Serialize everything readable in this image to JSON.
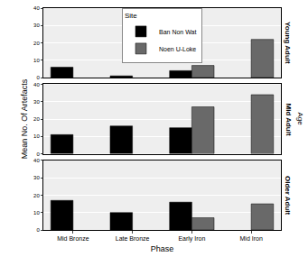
{
  "chart_data": {
    "type": "bar",
    "x_label": "Phase",
    "y_label": "Mean No. Of Artefacts",
    "facet_label": "Age",
    "legend_title": "Site",
    "categories": [
      "Mid Bronze",
      "Late Bronze",
      "Early Iron",
      "Mid Iron"
    ],
    "ylim": [
      0,
      40
    ],
    "yticks": [
      0,
      10,
      20,
      30,
      40
    ],
    "grid": true,
    "legend": "top",
    "panels": [
      {
        "title": "Young Adult",
        "series": [
          {
            "name": "Ban Non Wat",
            "color": "#000000",
            "values": [
              6,
              1,
              4,
              null
            ]
          },
          {
            "name": "Noen U-Loke",
            "color": "#696969",
            "values": [
              null,
              null,
              7,
              22
            ]
          }
        ]
      },
      {
        "title": "Mid Adult",
        "series": [
          {
            "name": "Ban Non Wat",
            "color": "#000000",
            "values": [
              11,
              16,
              15,
              null
            ]
          },
          {
            "name": "Noen U-Loke",
            "color": "#696969",
            "values": [
              null,
              null,
              27,
              34
            ]
          }
        ]
      },
      {
        "title": "Older Adult",
        "series": [
          {
            "name": "Ban Non Wat",
            "color": "#000000",
            "values": [
              17,
              10,
              16,
              null
            ]
          },
          {
            "name": "Noen U-Loke",
            "color": "#696969",
            "values": [
              null,
              null,
              7,
              15
            ]
          }
        ]
      }
    ]
  }
}
